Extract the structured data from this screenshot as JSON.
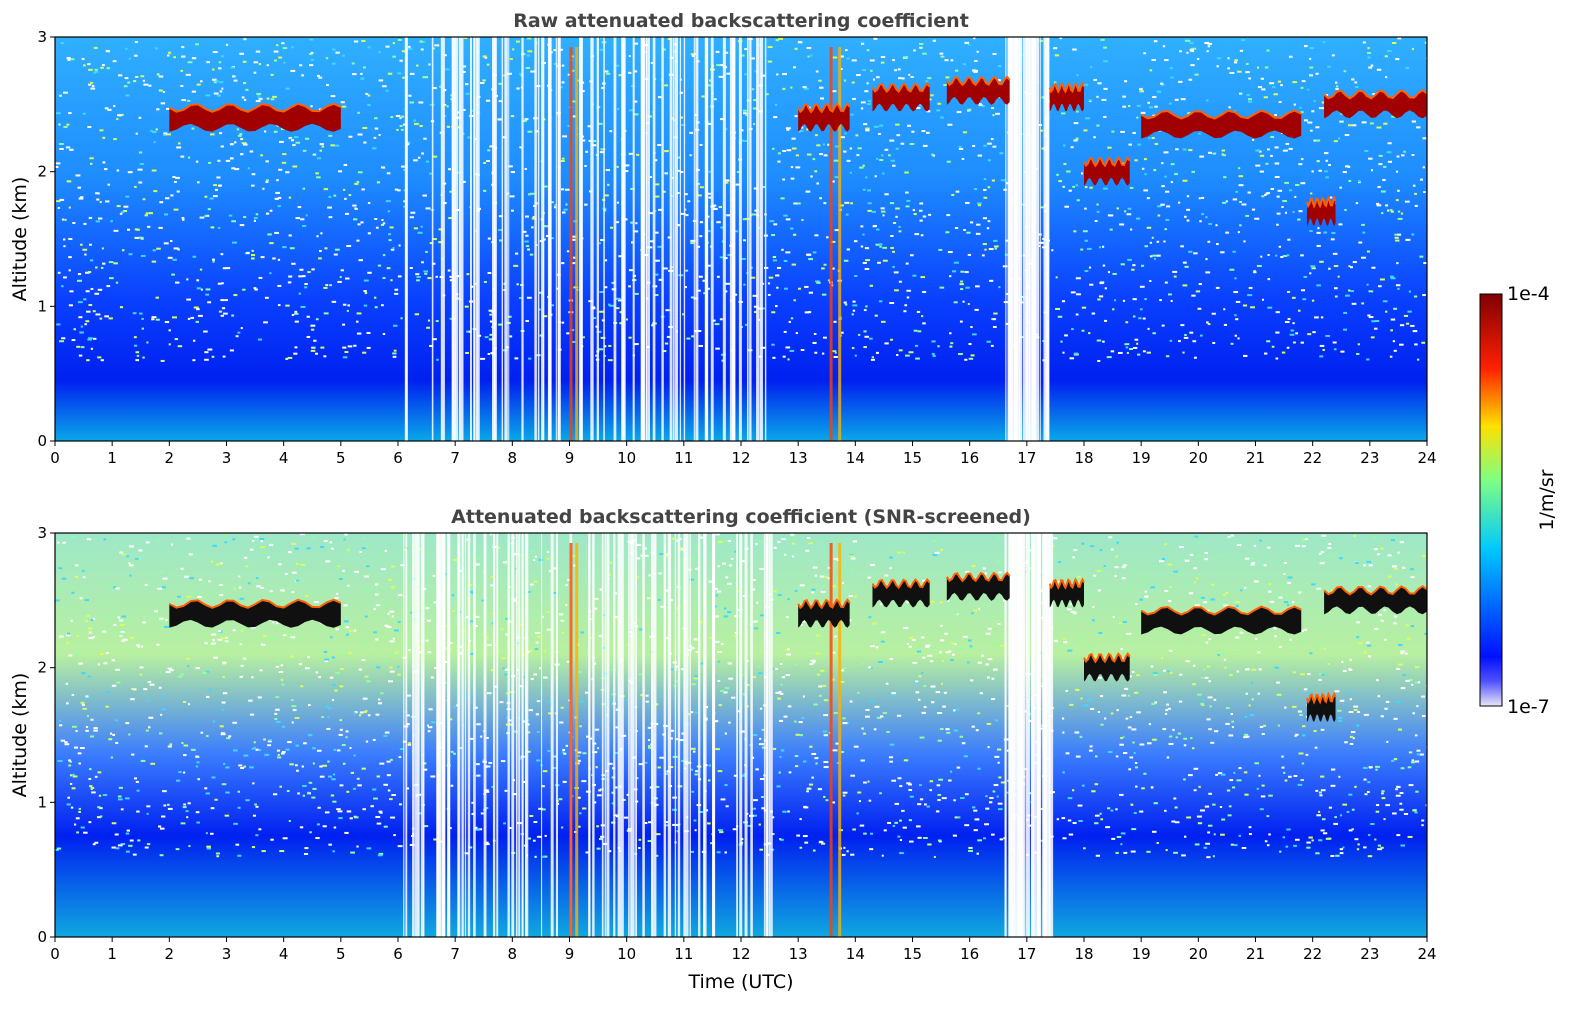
{
  "colors": {
    "low": "#e8e8f8",
    "blue": "#0010ff",
    "cyan": "#00c8ff",
    "green": "#80ff80",
    "yellow": "#ffe000",
    "red": "#ff2000",
    "high": "#800000"
  },
  "chart_data": [
    {
      "type": "heatmap",
      "title": "Raw attenuated backscattering coefficient",
      "xlabel": "",
      "ylabel": "Altitude (km)",
      "xlim": [
        0,
        24
      ],
      "ylim": [
        0,
        3
      ],
      "xticks": [
        "0",
        "1",
        "2",
        "3",
        "4",
        "5",
        "6",
        "7",
        "8",
        "9",
        "10",
        "11",
        "12",
        "13",
        "14",
        "15",
        "16",
        "17",
        "18",
        "19",
        "20",
        "21",
        "22",
        "23",
        "24"
      ],
      "yticks": [
        "0",
        "1",
        "2",
        "3"
      ],
      "color_scale": "log",
      "cloud_layers": [
        {
          "x0": 2.0,
          "x1": 5.0,
          "altitude_km": 2.4
        },
        {
          "x0": 13.0,
          "x1": 13.9,
          "altitude_km": 2.4
        },
        {
          "x0": 14.3,
          "x1": 15.3,
          "altitude_km": 2.55
        },
        {
          "x0": 15.6,
          "x1": 16.7,
          "altitude_km": 2.6
        },
        {
          "x0": 17.4,
          "x1": 18.0,
          "altitude_km": 2.55
        },
        {
          "x0": 18.0,
          "x1": 18.8,
          "altitude_km": 2.0
        },
        {
          "x0": 19.0,
          "x1": 21.8,
          "altitude_km": 2.35
        },
        {
          "x0": 22.2,
          "x1": 24.0,
          "altitude_km": 2.5
        },
        {
          "x0": 21.9,
          "x1": 22.4,
          "altitude_km": 1.7
        }
      ]
    },
    {
      "type": "heatmap",
      "title": "Attenuated backscattering coefficient (SNR-screened)",
      "xlabel": "Time (UTC)",
      "ylabel": "Altitude (km)",
      "xlim": [
        0,
        24
      ],
      "ylim": [
        0,
        3
      ],
      "xticks": [
        "0",
        "1",
        "2",
        "3",
        "4",
        "5",
        "6",
        "7",
        "8",
        "9",
        "10",
        "11",
        "12",
        "13",
        "14",
        "15",
        "16",
        "17",
        "18",
        "19",
        "20",
        "21",
        "22",
        "23",
        "24"
      ],
      "yticks": [
        "0",
        "1",
        "2",
        "3"
      ],
      "color_scale": "log",
      "cloud_layers": [
        {
          "x0": 2.0,
          "x1": 5.0,
          "altitude_km": 2.4
        },
        {
          "x0": 13.0,
          "x1": 13.9,
          "altitude_km": 2.4
        },
        {
          "x0": 14.3,
          "x1": 15.3,
          "altitude_km": 2.55
        },
        {
          "x0": 15.6,
          "x1": 16.7,
          "altitude_km": 2.6
        },
        {
          "x0": 17.4,
          "x1": 18.0,
          "altitude_km": 2.55
        },
        {
          "x0": 18.0,
          "x1": 18.8,
          "altitude_km": 2.0
        },
        {
          "x0": 19.0,
          "x1": 21.8,
          "altitude_km": 2.35
        },
        {
          "x0": 22.2,
          "x1": 24.0,
          "altitude_km": 2.5
        },
        {
          "x0": 21.9,
          "x1": 22.4,
          "altitude_km": 1.7
        }
      ]
    }
  ],
  "colorbar": {
    "label": "1/m/sr",
    "max_label": "1e-4",
    "min_label": "1e-7",
    "range": [
      1e-07,
      0.0001
    ]
  }
}
